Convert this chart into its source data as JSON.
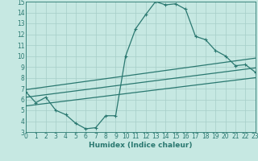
{
  "bg_color": "#c6e8e2",
  "grid_color": "#a5cec8",
  "line_color": "#2a7870",
  "line_width": 0.9,
  "marker": "+",
  "marker_size": 3,
  "marker_lw": 0.8,
  "xlabel": "Humidex (Indice chaleur)",
  "xlabel_fontsize": 6.5,
  "tick_fontsize": 5.5,
  "xlim": [
    0,
    23
  ],
  "ylim": [
    3,
    15
  ],
  "yticks": [
    3,
    4,
    5,
    6,
    7,
    8,
    9,
    10,
    11,
    12,
    13,
    14,
    15
  ],
  "xticks": [
    0,
    1,
    2,
    3,
    4,
    5,
    6,
    7,
    8,
    9,
    10,
    11,
    12,
    13,
    14,
    15,
    16,
    17,
    18,
    19,
    20,
    21,
    22,
    23
  ],
  "series1_x": [
    0,
    1,
    2,
    3,
    4,
    5,
    6,
    7,
    8,
    9,
    10,
    11,
    12,
    13,
    14,
    15,
    16,
    17,
    18,
    19,
    20,
    21,
    22,
    23
  ],
  "series1_y": [
    6.7,
    5.7,
    6.2,
    5.0,
    4.6,
    3.8,
    3.3,
    3.4,
    4.5,
    4.5,
    10.0,
    12.5,
    13.8,
    15.0,
    14.7,
    14.8,
    14.3,
    11.8,
    11.5,
    10.5,
    10.0,
    9.1,
    9.2,
    8.5
  ],
  "series2_x": [
    0,
    23
  ],
  "series2_y": [
    5.4,
    8.0
  ],
  "series3_x": [
    0,
    23
  ],
  "series3_y": [
    6.2,
    8.9
  ],
  "series4_x": [
    0,
    23
  ],
  "series4_y": [
    6.9,
    9.8
  ]
}
